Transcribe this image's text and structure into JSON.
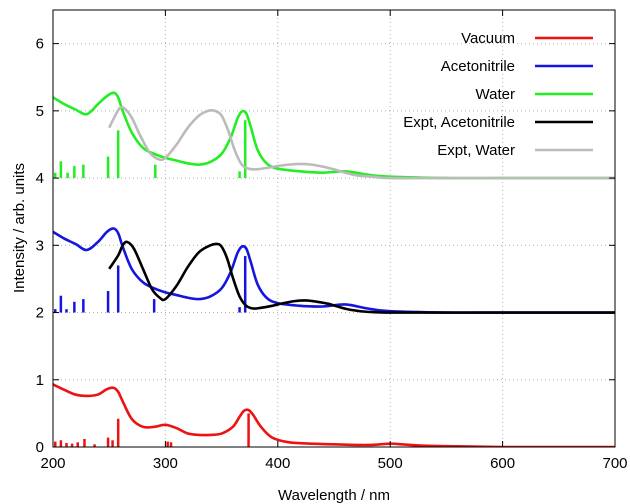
{
  "chart_data": {
    "type": "line",
    "title": "",
    "xlabel": "Wavelength / nm",
    "ylabel": "Intensity / arb. units",
    "xlim": [
      200,
      700
    ],
    "ylim": [
      0,
      6.5
    ],
    "xticks": [
      200,
      300,
      400,
      500,
      600,
      700
    ],
    "yticks": [
      0,
      1,
      2,
      3,
      4,
      5,
      6
    ],
    "grid": true,
    "legend_position": "top-right",
    "series": [
      {
        "name": "Vacuum",
        "color": "#ee1111",
        "x": [
          200,
          210,
          220,
          230,
          240,
          248,
          254,
          258,
          262,
          270,
          280,
          290,
          300,
          310,
          320,
          330,
          340,
          350,
          360,
          366,
          370,
          374,
          378,
          385,
          395,
          410,
          430,
          450,
          480,
          500,
          510,
          530,
          560,
          600,
          650,
          700
        ],
        "y": [
          0.93,
          0.85,
          0.78,
          0.76,
          0.78,
          0.86,
          0.88,
          0.82,
          0.68,
          0.42,
          0.3,
          0.3,
          0.33,
          0.28,
          0.2,
          0.18,
          0.18,
          0.2,
          0.3,
          0.45,
          0.54,
          0.55,
          0.48,
          0.3,
          0.14,
          0.07,
          0.05,
          0.04,
          0.03,
          0.05,
          0.04,
          0.02,
          0.01,
          0.0,
          0.0,
          0.0
        ],
        "sticks": [
          [
            202,
            0.08
          ],
          [
            207,
            0.1
          ],
          [
            212,
            0.06
          ],
          [
            217,
            0.05
          ],
          [
            222,
            0.07
          ],
          [
            228,
            0.12
          ],
          [
            237,
            0.04
          ],
          [
            249,
            0.14
          ],
          [
            253,
            0.1
          ],
          [
            258,
            0.42
          ],
          [
            302,
            0.08
          ],
          [
            305,
            0.07
          ],
          [
            374,
            0.5
          ]
        ]
      },
      {
        "name": "Acetonitrile",
        "color": "#1515dd",
        "x": [
          200,
          210,
          220,
          230,
          240,
          248,
          254,
          258,
          262,
          270,
          280,
          290,
          300,
          310,
          320,
          330,
          340,
          350,
          358,
          364,
          368,
          372,
          376,
          382,
          390,
          400,
          420,
          440,
          460,
          480,
          500,
          550,
          600,
          650,
          700
        ],
        "y": [
          3.2,
          3.1,
          3.02,
          2.93,
          3.05,
          3.2,
          3.25,
          3.18,
          2.98,
          2.65,
          2.45,
          2.36,
          2.3,
          2.26,
          2.22,
          2.2,
          2.24,
          2.36,
          2.6,
          2.88,
          2.98,
          2.95,
          2.75,
          2.42,
          2.22,
          2.14,
          2.1,
          2.09,
          2.12,
          2.06,
          2.02,
          2.0,
          2.0,
          2.0,
          2.0
        ],
        "sticks": [
          [
            202,
            2.05
          ],
          [
            207,
            2.25
          ],
          [
            212,
            2.05
          ],
          [
            219,
            2.16
          ],
          [
            227,
            2.2
          ],
          [
            249,
            2.32
          ],
          [
            258,
            2.7
          ],
          [
            290,
            2.2
          ],
          [
            366,
            2.08
          ],
          [
            371,
            2.84
          ]
        ]
      },
      {
        "name": "Water",
        "color": "#22ee22",
        "x": [
          200,
          210,
          220,
          230,
          240,
          248,
          254,
          258,
          262,
          270,
          280,
          290,
          300,
          310,
          320,
          330,
          340,
          350,
          358,
          364,
          368,
          372,
          376,
          382,
          390,
          400,
          420,
          440,
          460,
          480,
          500,
          550,
          600,
          650,
          700
        ],
        "y": [
          5.2,
          5.1,
          5.02,
          4.95,
          5.1,
          5.22,
          5.27,
          5.2,
          5.0,
          4.68,
          4.45,
          4.36,
          4.3,
          4.26,
          4.22,
          4.2,
          4.24,
          4.36,
          4.6,
          4.88,
          4.99,
          4.96,
          4.76,
          4.42,
          4.22,
          4.14,
          4.1,
          4.08,
          4.1,
          4.05,
          4.02,
          4.0,
          4.0,
          4.0,
          4.0
        ],
        "sticks": [
          [
            202,
            4.08
          ],
          [
            207,
            4.25
          ],
          [
            213,
            4.08
          ],
          [
            219,
            4.18
          ],
          [
            227,
            4.2
          ],
          [
            249,
            4.32
          ],
          [
            258,
            4.71
          ],
          [
            291,
            4.2
          ],
          [
            366,
            4.1
          ],
          [
            371,
            4.86
          ]
        ]
      },
      {
        "name": "Expt, Acetonitrile",
        "color": "#000000",
        "x": [
          250,
          258,
          262,
          266,
          272,
          280,
          288,
          295,
          300,
          310,
          320,
          330,
          340,
          346,
          350,
          355,
          360,
          366,
          372,
          378,
          385,
          395,
          405,
          415,
          425,
          435,
          445,
          455,
          465,
          480,
          500,
          550,
          600,
          650,
          700
        ],
        "y": [
          2.65,
          2.85,
          3.0,
          3.05,
          2.95,
          2.65,
          2.35,
          2.22,
          2.2,
          2.4,
          2.68,
          2.9,
          3.0,
          3.02,
          2.98,
          2.8,
          2.52,
          2.24,
          2.1,
          2.06,
          2.07,
          2.1,
          2.14,
          2.17,
          2.18,
          2.16,
          2.13,
          2.08,
          2.04,
          2.01,
          2.0,
          2.0,
          2.0,
          2.0,
          2.0
        ],
        "sticks": []
      },
      {
        "name": "Expt, Water",
        "color": "#bbbbbb",
        "x": [
          250,
          256,
          260,
          264,
          270,
          278,
          286,
          294,
          300,
          310,
          320,
          330,
          338,
          344,
          350,
          356,
          362,
          368,
          374,
          380,
          390,
          400,
          410,
          420,
          430,
          440,
          450,
          460,
          470,
          485,
          500,
          550,
          600,
          650,
          700
        ],
        "y": [
          4.75,
          4.95,
          5.05,
          5.03,
          4.9,
          4.62,
          4.38,
          4.28,
          4.3,
          4.5,
          4.75,
          4.93,
          5.0,
          5.0,
          4.93,
          4.7,
          4.4,
          4.2,
          4.14,
          4.13,
          4.15,
          4.18,
          4.2,
          4.21,
          4.2,
          4.17,
          4.13,
          4.08,
          4.04,
          4.02,
          4.0,
          4.0,
          4.0,
          4.0,
          4.0
        ],
        "sticks": []
      }
    ]
  }
}
